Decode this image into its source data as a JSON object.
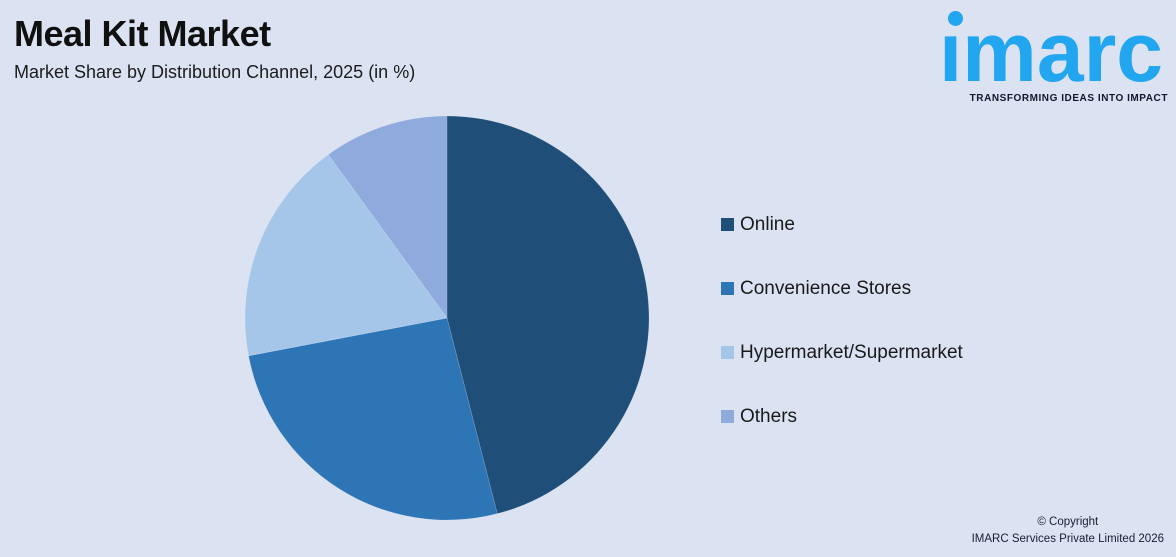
{
  "header": {
    "title": "Meal Kit Market",
    "subtitle": "Market Share by Distribution Channel, 2025 (in %)"
  },
  "logo": {
    "wordmark": "imarc",
    "tagline": "TRANSFORMING IDEAS INTO IMPACT",
    "brand_color": "#23A6F0",
    "tagline_color": "#14162E"
  },
  "chart_data": {
    "type": "pie",
    "title": "Meal Kit Market",
    "subtitle": "Market Share by Distribution Channel, 2025 (in %)",
    "categories": [
      "Online",
      "Convenience Stores",
      "Hypermarket/Supermarket",
      "Others"
    ],
    "values": [
      46,
      26,
      18,
      10
    ],
    "unit": "%",
    "colors": [
      "#1F4E79",
      "#2E75B6",
      "#A6C6E9",
      "#8FAADC"
    ],
    "start_angle_deg": 0,
    "direction": "clockwise",
    "legend_position": "right",
    "data_labels_shown": false,
    "background_color": "#DBE2F1"
  },
  "footer": {
    "copyright_line1": "© Copyright",
    "copyright_line2": "IMARC Services Private Limited 2026"
  }
}
